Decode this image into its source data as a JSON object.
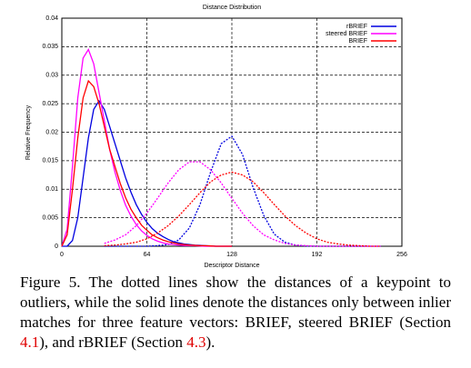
{
  "chart_data": {
    "type": "line",
    "title": "Distance Distribution",
    "x_label": "Descriptor Distance",
    "y_label": "Relative Frequency",
    "xlim": [
      0,
      256
    ],
    "xticks": [
      0,
      64,
      128,
      192,
      256
    ],
    "ylim": [
      0,
      0.04
    ],
    "yticks": [
      0,
      0.005,
      0.01,
      0.015,
      0.02,
      0.025,
      0.03,
      0.035,
      0.04
    ],
    "grid": true,
    "legend": "top-right",
    "series": [
      {
        "name": "rBRIEF",
        "color": "#0000e0",
        "inliers": {
          "x": [
            0,
            4,
            8,
            12,
            16,
            20,
            24,
            28,
            32,
            36,
            40,
            44,
            48,
            52,
            56,
            60,
            64,
            68,
            72,
            76,
            80,
            84,
            88,
            92,
            96,
            100,
            104,
            108,
            112,
            116,
            120,
            124,
            128
          ],
          "values": [
            0,
            0,
            0.001,
            0.005,
            0.012,
            0.019,
            0.024,
            0.0255,
            0.024,
            0.021,
            0.018,
            0.015,
            0.012,
            0.0095,
            0.0073,
            0.0056,
            0.0042,
            0.0031,
            0.0023,
            0.0017,
            0.0012,
            0.0008,
            0.0006,
            0.0004,
            0.0003,
            0.0002,
            0.00015,
            0.0001,
            5e-05,
            0,
            0,
            0,
            0
          ]
        },
        "outliers": {
          "x": [
            32,
            40,
            48,
            56,
            64,
            72,
            80,
            88,
            96,
            104,
            112,
            120,
            128,
            136,
            144,
            152,
            160,
            168,
            176,
            184,
            192,
            200,
            208,
            216,
            224,
            232,
            240
          ],
          "values": [
            0,
            0,
            0,
            0,
            0,
            0.0001,
            0.0003,
            0.0011,
            0.0032,
            0.0073,
            0.013,
            0.018,
            0.0193,
            0.0161,
            0.0103,
            0.0054,
            0.0021,
            0.0007,
            0.0002,
            3e-05,
            0,
            0,
            0,
            0,
            0,
            0,
            0
          ]
        }
      },
      {
        "name": "steered BRIEF",
        "color": "#ff00ff",
        "inliers": {
          "x": [
            0,
            4,
            8,
            12,
            16,
            20,
            24,
            28,
            32,
            36,
            40,
            44,
            48,
            52,
            56,
            60,
            64,
            68,
            72,
            76,
            80,
            84,
            88,
            92,
            96,
            100,
            104,
            108,
            112,
            116,
            120,
            124,
            128
          ],
          "values": [
            0,
            0.003,
            0.014,
            0.026,
            0.033,
            0.0345,
            0.032,
            0.027,
            0.022,
            0.017,
            0.013,
            0.0098,
            0.0072,
            0.0053,
            0.0038,
            0.0027,
            0.0019,
            0.0013,
            0.0009,
            0.0006,
            0.0004,
            0.0003,
            0.0002,
            0.00015,
            0.0001,
            0.0001,
            5e-05,
            0,
            0,
            0,
            0,
            0,
            0
          ]
        },
        "outliers": {
          "x": [
            32,
            40,
            48,
            56,
            64,
            72,
            80,
            88,
            96,
            104,
            112,
            120,
            128,
            136,
            144,
            152,
            160,
            168,
            176,
            184,
            192,
            200,
            208,
            216,
            224,
            232,
            240
          ],
          "values": [
            0.0005,
            0.0011,
            0.002,
            0.0036,
            0.0058,
            0.0084,
            0.0111,
            0.0134,
            0.0148,
            0.0148,
            0.0134,
            0.0111,
            0.0084,
            0.0058,
            0.0036,
            0.002,
            0.0011,
            0.0005,
            0.0002,
            0.0001,
            0,
            0,
            0,
            0,
            0,
            0,
            0
          ]
        }
      },
      {
        "name": "BRIEF",
        "color": "#ff0000",
        "inliers": {
          "x": [
            0,
            4,
            8,
            12,
            16,
            20,
            24,
            28,
            32,
            36,
            40,
            44,
            48,
            52,
            56,
            60,
            64,
            68,
            72,
            76,
            80,
            84,
            88,
            92,
            96,
            100,
            104,
            108,
            112,
            116,
            120,
            124,
            128
          ],
          "values": [
            0,
            0.002,
            0.01,
            0.019,
            0.026,
            0.029,
            0.028,
            0.025,
            0.021,
            0.017,
            0.014,
            0.011,
            0.0085,
            0.0065,
            0.005,
            0.0037,
            0.0028,
            0.002,
            0.0015,
            0.0011,
            0.0008,
            0.0006,
            0.0004,
            0.0003,
            0.0002,
            0.00015,
            0.0001,
            0.0001,
            5e-05,
            0,
            0,
            0,
            0
          ]
        },
        "outliers": {
          "x": [
            32,
            40,
            48,
            56,
            64,
            72,
            80,
            88,
            96,
            104,
            112,
            120,
            128,
            136,
            144,
            152,
            160,
            168,
            176,
            184,
            192,
            200,
            208,
            216,
            224,
            232,
            240
          ],
          "values": [
            0.0001,
            0.0002,
            0.0004,
            0.0007,
            0.0013,
            0.0023,
            0.0036,
            0.0053,
            0.0073,
            0.0094,
            0.0113,
            0.0125,
            0.013,
            0.0125,
            0.0113,
            0.0094,
            0.0073,
            0.0053,
            0.0036,
            0.0023,
            0.0013,
            0.0007,
            0.0004,
            0.0002,
            0.0001,
            0,
            0
          ]
        }
      }
    ]
  },
  "caption": [
    "Figure 5. The dotted lines show the distances of a keypoint to outliers, while the solid lines denote the distances only between inlier matches for three feature vectors: BRIEF, steered BRIEF (Section ",
    "4.1",
    "), and rBRIEF (Section ",
    "4.3",
    ")."
  ]
}
